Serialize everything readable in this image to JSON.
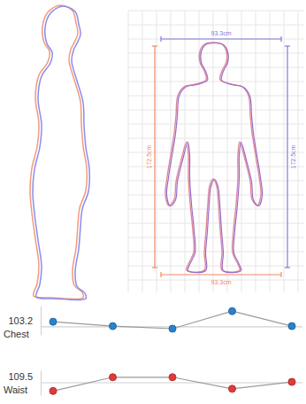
{
  "front_view": {
    "top_width": "93.3cm",
    "bottom_width": "93.3cm",
    "left_height": "172.5cm",
    "right_height": "172.5cm"
  },
  "chart_data": [
    {
      "type": "line",
      "title": "Chest",
      "categories": [
        null,
        null,
        null,
        null,
        null
      ],
      "values": [
        104.6,
        103.4,
        102.7,
        107.5,
        103.4
      ],
      "color": "#2b82c9",
      "ylim": [
        101,
        109
      ],
      "yticks": [
        103.2
      ],
      "grid": true,
      "tick_labels": "y",
      "marker": "circle"
    },
    {
      "type": "line",
      "title": "Waist",
      "categories": [
        null,
        null,
        null,
        null,
        null
      ],
      "values": [
        106.5,
        111.5,
        111.5,
        107.3,
        109.8
      ],
      "color": "#e03a3a",
      "ylim": [
        105,
        114
      ],
      "yticks": [
        109.5
      ],
      "grid": true,
      "tick_labels": "y",
      "marker": "circle"
    }
  ]
}
